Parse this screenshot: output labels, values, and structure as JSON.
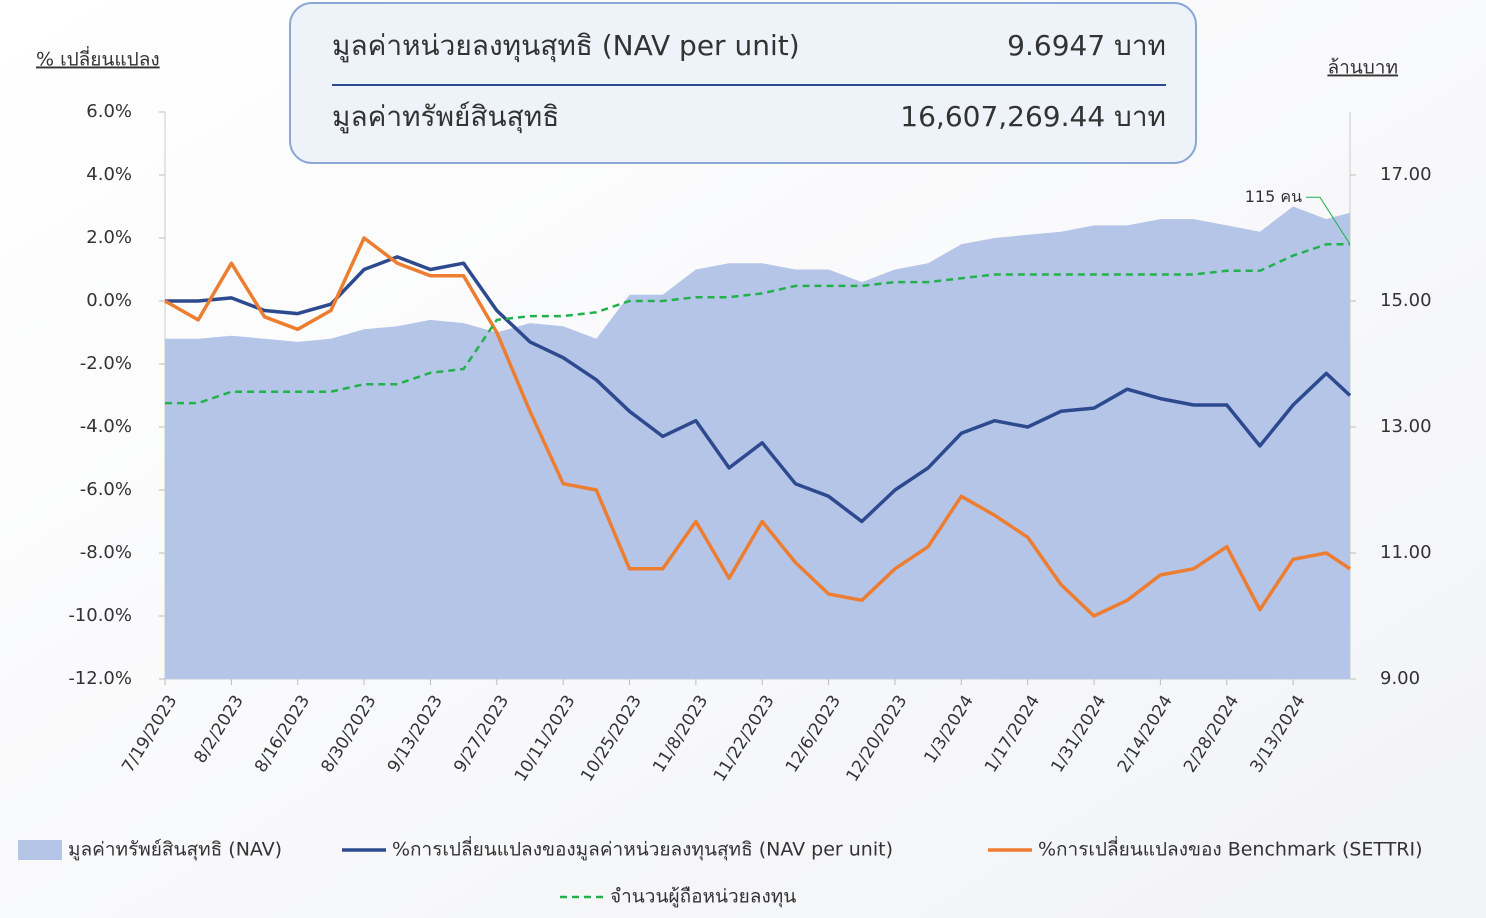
{
  "header": {
    "rows": [
      {
        "label": "มูลค่าหน่วยลงทุนสุทธิ (NAV per unit)",
        "value": "9.6947 บาท"
      },
      {
        "label": "มูลค่าทรัพย์สินสุทธิ",
        "value": "16,607,269.44 บาท"
      }
    ]
  },
  "chart_data": {
    "type": "line",
    "ylabel": "% เปลี่ยนแปลง",
    "y2label": "ล้านบาท",
    "annotation": "115 คน",
    "x": [
      "7/19/2023",
      "7/26/2023",
      "8/2/2023",
      "8/9/2023",
      "8/16/2023",
      "8/23/2023",
      "8/30/2023",
      "9/6/2023",
      "9/13/2023",
      "9/20/2023",
      "9/27/2023",
      "10/4/2023",
      "10/11/2023",
      "10/18/2023",
      "10/25/2023",
      "11/1/2023",
      "11/8/2023",
      "11/15/2023",
      "11/22/2023",
      "11/29/2023",
      "12/6/2023",
      "12/13/2023",
      "12/20/2023",
      "12/27/2023",
      "1/3/2024",
      "1/10/2024",
      "1/17/2024",
      "1/24/2024",
      "1/31/2024",
      "2/7/2024",
      "2/14/2024",
      "2/21/2024",
      "2/28/2024",
      "3/6/2024",
      "3/13/2024",
      "3/20/2024",
      "3/25/2024"
    ],
    "xlim": [
      "7/19/2023",
      "3/25/2024"
    ],
    "xticks": [
      "7/19/2023",
      "8/2/2023",
      "8/16/2023",
      "8/30/2023",
      "9/13/2023",
      "9/27/2023",
      "10/11/2023",
      "10/25/2023",
      "11/8/2023",
      "11/22/2023",
      "12/6/2023",
      "12/20/2023",
      "1/3/2024",
      "1/17/2024",
      "1/31/2024",
      "2/14/2024",
      "2/28/2024",
      "3/13/2024"
    ],
    "ylim": [
      -12,
      6
    ],
    "yticks": [
      {
        "value": -12,
        "label": "-12.0%"
      },
      {
        "value": -10,
        "label": "-10.0%"
      },
      {
        "value": -8,
        "label": "-8.0%"
      },
      {
        "value": -6,
        "label": "-6.0%"
      },
      {
        "value": -4,
        "label": "-4.0%"
      },
      {
        "value": -2,
        "label": "-2.0%"
      },
      {
        "value": 0,
        "label": "0.0%"
      },
      {
        "value": 2,
        "label": "2.0%"
      },
      {
        "value": 4,
        "label": "4.0%"
      },
      {
        "value": 6,
        "label": "6.0%"
      }
    ],
    "y2lim": [
      9,
      18
    ],
    "y2ticks": [
      {
        "value": 9,
        "label": "9.00"
      },
      {
        "value": 11,
        "label": "11.00"
      },
      {
        "value": 13,
        "label": "13.00"
      },
      {
        "value": 15,
        "label": "15.00"
      },
      {
        "value": 17,
        "label": "17.00"
      }
    ],
    "y3lim": [
      0,
      150
    ],
    "series": [
      {
        "name": "มูลค่าทรัพย์สินสุทธิ (NAV)",
        "kind": "area",
        "axis": "y2",
        "color": "#b4c5e8",
        "values": [
          14.4,
          14.4,
          14.45,
          14.4,
          14.35,
          14.4,
          14.55,
          14.6,
          14.7,
          14.65,
          14.5,
          14.65,
          14.6,
          14.4,
          15.1,
          15.1,
          15.5,
          15.6,
          15.6,
          15.5,
          15.5,
          15.3,
          15.5,
          15.6,
          15.9,
          16.0,
          16.05,
          16.1,
          16.2,
          16.2,
          16.3,
          16.3,
          16.2,
          16.1,
          16.5,
          16.3,
          16.4
        ]
      },
      {
        "name": "%การเปลี่ยนแปลงของมูลค่าหน่วยลงทุนสุทธิ (NAV per unit)",
        "kind": "line",
        "axis": "y",
        "color": "#2e4a8f",
        "values": [
          0.0,
          0.0,
          0.1,
          -0.3,
          -0.4,
          -0.1,
          1.0,
          1.4,
          1.0,
          1.2,
          -0.3,
          -1.3,
          -1.8,
          -2.5,
          -3.5,
          -4.3,
          -3.8,
          -5.3,
          -4.5,
          -5.8,
          -6.2,
          -7.0,
          -6.0,
          -5.3,
          -4.2,
          -3.8,
          -4.0,
          -3.5,
          -3.4,
          -2.8,
          -3.1,
          -3.3,
          -3.3,
          -4.6,
          -3.3,
          -2.3,
          -3.0
        ]
      },
      {
        "name": "%การเปลี่ยนแปลงของ Benchmark (SETTRI)",
        "kind": "line",
        "axis": "y",
        "color": "#ed7d31",
        "values": [
          0.0,
          -0.6,
          1.2,
          -0.5,
          -0.9,
          -0.3,
          2.0,
          1.2,
          0.8,
          0.8,
          -1.0,
          -3.5,
          -5.8,
          -6.0,
          -8.5,
          -8.5,
          -7.0,
          -8.8,
          -7.0,
          -8.3,
          -9.3,
          -9.5,
          -8.5,
          -7.8,
          -6.2,
          -6.8,
          -7.5,
          -9.0,
          -10.0,
          -9.5,
          -8.7,
          -8.5,
          -7.8,
          -9.8,
          -8.2,
          -8.0,
          -8.5
        ]
      },
      {
        "name": "จำนวนผู้ถือหน่วยลงทุน",
        "kind": "dashed",
        "axis": "y3",
        "color": "#22b14c",
        "values": [
          73,
          73,
          76,
          76,
          76,
          76,
          78,
          78,
          81,
          82,
          95,
          96,
          96,
          97,
          100,
          100,
          101,
          101,
          102,
          104,
          104,
          104,
          105,
          105,
          106,
          107,
          107,
          107,
          107,
          107,
          107,
          107,
          108,
          108,
          112,
          115,
          115
        ]
      }
    ]
  }
}
